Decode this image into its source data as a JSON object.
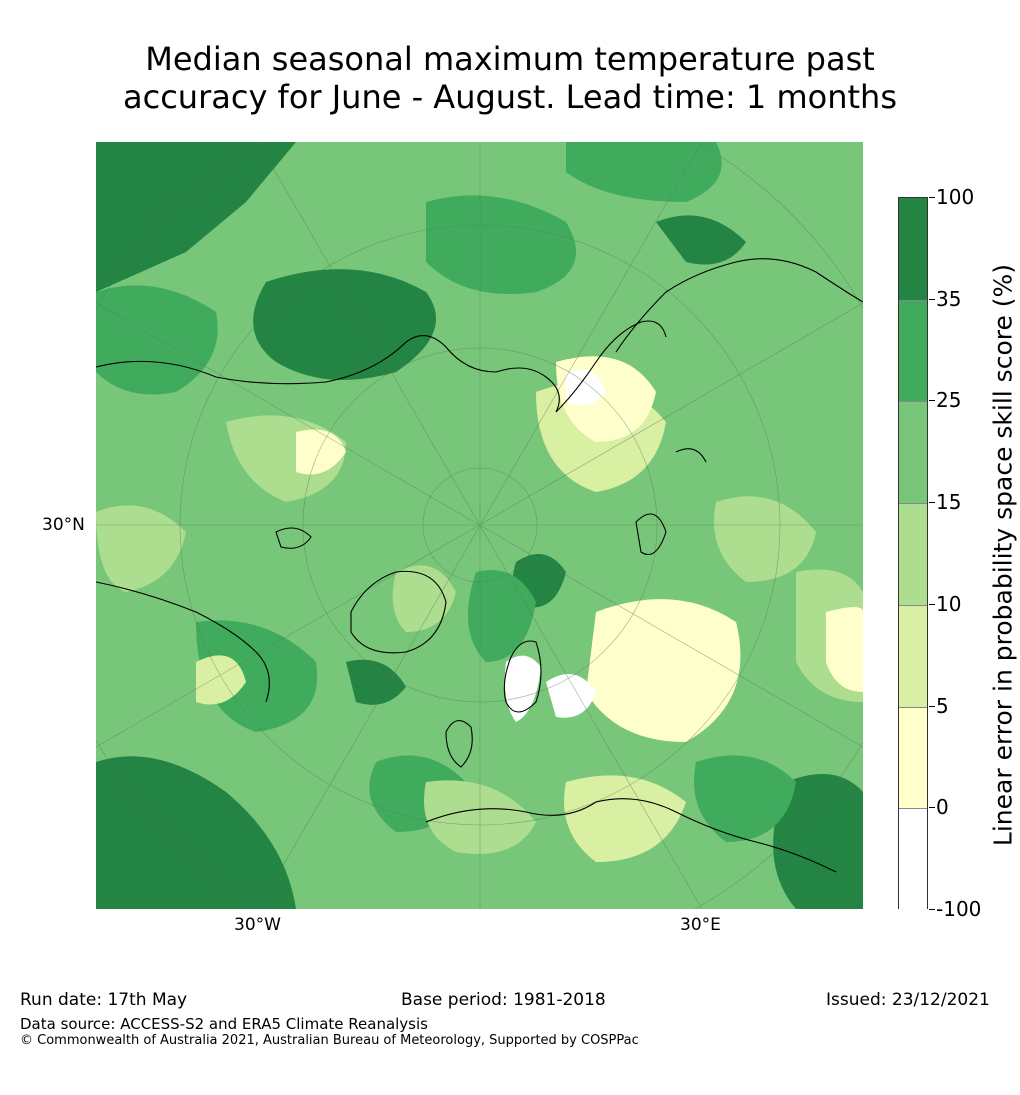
{
  "title": {
    "line1": "Median seasonal maximum temperature past",
    "line2": "accuracy for June - August. Lead time: 1 months"
  },
  "map": {
    "projection": "north polar stereographic",
    "labels": {
      "lat_30n": "30°N",
      "lon_30w": "30°W",
      "lon_30e": "30°E"
    }
  },
  "colorbar": {
    "title": "Linear error in probability space skill score (%)",
    "ticks": [
      "100",
      "35",
      "25",
      "15",
      "10",
      "5",
      "0",
      "-100"
    ],
    "segments": [
      {
        "from": "-100",
        "to": "0",
        "color": "#ffffff"
      },
      {
        "from": "0",
        "to": "5",
        "color": "#ffffcc"
      },
      {
        "from": "5",
        "to": "10",
        "color": "#d9f0a3"
      },
      {
        "from": "10",
        "to": "15",
        "color": "#addd8e"
      },
      {
        "from": "15",
        "to": "25",
        "color": "#78c679"
      },
      {
        "from": "25",
        "to": "35",
        "color": "#41ab5d"
      },
      {
        "from": "35",
        "to": "100",
        "color": "#238443"
      }
    ]
  },
  "footer": {
    "run_date": "Run date: 17th May",
    "base_period": "Base period: 1981-2018",
    "issued": "Issued: 23/12/2021",
    "data_source": "Data source: ACCESS-S2 and ERA5 Climate Reanalysis",
    "copyright": "© Commonwealth of Australia 2021, Australian Bureau of Meteorology, Supported by COSPPac"
  }
}
